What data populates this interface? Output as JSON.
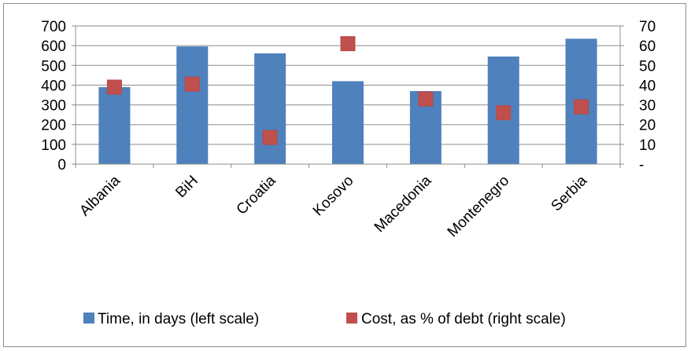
{
  "chart_data": {
    "type": "bar",
    "categories": [
      "Albania",
      "BiH",
      "Croatia",
      "Kosovo",
      "Macedonia",
      "Montenegro",
      "Serbia"
    ],
    "series": [
      {
        "name": "Time, in days (left scale)",
        "kind": "bar",
        "axis": "left",
        "color": "#4f81bd",
        "values": [
          390,
          596,
          561,
          420,
          370,
          545,
          635
        ]
      },
      {
        "name": "Cost, as % of debt (right scale)",
        "kind": "marker",
        "axis": "right",
        "color": "#c0504d",
        "values": [
          39,
          40.5,
          13.5,
          61,
          33,
          26,
          29
        ]
      }
    ],
    "left_axis": {
      "ylim": [
        0,
        700
      ],
      "ticks": [
        0,
        100,
        200,
        300,
        400,
        500,
        600,
        700
      ],
      "tick_labels": [
        "0",
        "100",
        "200",
        "300",
        "400",
        "500",
        "600",
        "700"
      ]
    },
    "right_axis": {
      "ylim": [
        0,
        70
      ],
      "ticks": [
        0,
        10,
        20,
        30,
        40,
        50,
        60,
        70
      ],
      "tick_labels": [
        "-",
        "10",
        "20",
        "30",
        "40",
        "50",
        "60",
        "70"
      ]
    },
    "grid": true,
    "legend_position": "bottom"
  }
}
